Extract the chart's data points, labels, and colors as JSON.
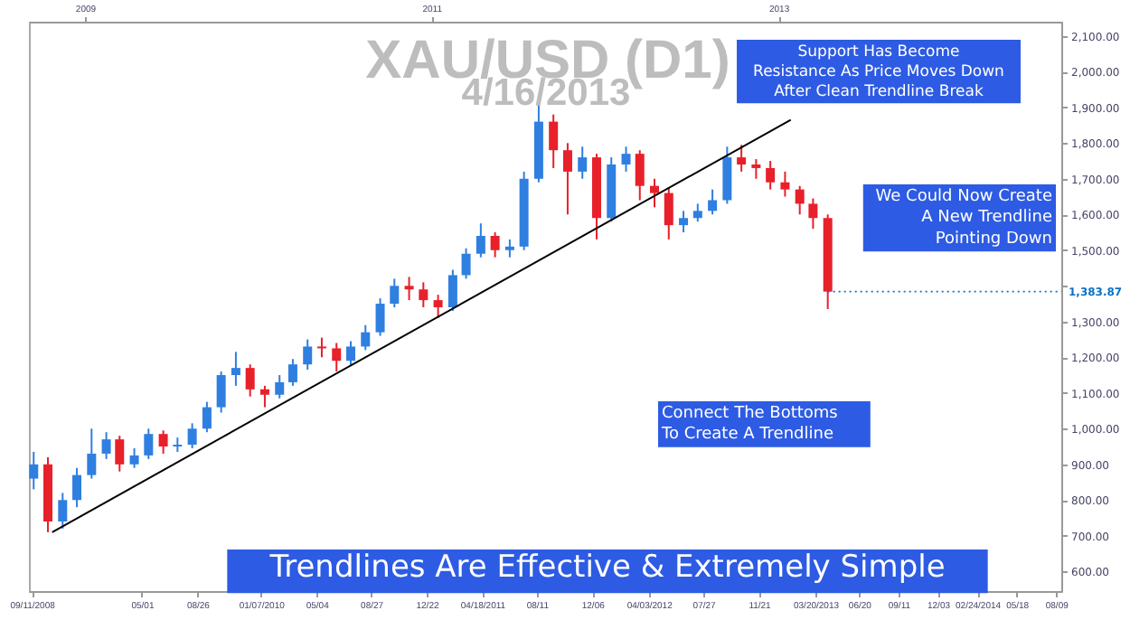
{
  "chart_data": {
    "type": "candlestick",
    "title": "XAU/USD (D1)",
    "subtitle": "4/16/2013",
    "x": [
      "2008-09-15",
      "2008-10-15",
      "2008-11-15",
      "2008-12-15",
      "2009-01-15",
      "2009-02-15",
      "2009-03-15",
      "2009-04-15",
      "2009-05-15",
      "2009-06-15",
      "2009-07-15",
      "2009-08-15",
      "2009-09-15",
      "2009-10-15",
      "2009-11-15",
      "2009-12-15",
      "2010-01-15",
      "2010-02-15",
      "2010-03-15",
      "2010-04-15",
      "2010-05-15",
      "2010-06-15",
      "2010-07-15",
      "2010-08-15",
      "2010-09-15",
      "2010-10-15",
      "2010-11-15",
      "2010-12-15",
      "2011-01-15",
      "2011-02-15",
      "2011-03-15",
      "2011-04-15",
      "2011-05-15",
      "2011-06-15",
      "2011-07-15",
      "2011-08-15",
      "2011-09-15",
      "2011-10-15",
      "2011-11-15",
      "2011-12-15",
      "2012-01-15",
      "2012-02-15",
      "2012-03-15",
      "2012-04-15",
      "2012-05-15",
      "2012-06-15",
      "2012-07-15",
      "2012-08-15",
      "2012-09-15",
      "2012-10-15",
      "2012-11-15",
      "2012-12-15",
      "2013-01-15",
      "2013-02-15",
      "2013-03-15",
      "2013-04-15"
    ],
    "ohlc": [
      [
        860,
        935,
        830,
        900
      ],
      [
        900,
        920,
        710,
        740
      ],
      [
        740,
        820,
        720,
        800
      ],
      [
        800,
        890,
        780,
        870
      ],
      [
        870,
        1000,
        860,
        930
      ],
      [
        930,
        990,
        915,
        970
      ],
      [
        970,
        980,
        880,
        900
      ],
      [
        900,
        945,
        890,
        925
      ],
      [
        925,
        1000,
        915,
        985
      ],
      [
        985,
        995,
        930,
        950
      ],
      [
        950,
        975,
        935,
        955
      ],
      [
        955,
        1015,
        945,
        1000
      ],
      [
        1000,
        1075,
        990,
        1060
      ],
      [
        1060,
        1160,
        1045,
        1150
      ],
      [
        1150,
        1215,
        1120,
        1170
      ],
      [
        1170,
        1180,
        1090,
        1110
      ],
      [
        1110,
        1120,
        1060,
        1095
      ],
      [
        1095,
        1150,
        1085,
        1130
      ],
      [
        1130,
        1195,
        1120,
        1180
      ],
      [
        1180,
        1250,
        1165,
        1230
      ],
      [
        1230,
        1255,
        1200,
        1225
      ],
      [
        1225,
        1240,
        1160,
        1190
      ],
      [
        1190,
        1245,
        1175,
        1230
      ],
      [
        1230,
        1290,
        1220,
        1270
      ],
      [
        1270,
        1365,
        1260,
        1350
      ],
      [
        1350,
        1420,
        1340,
        1400
      ],
      [
        1400,
        1425,
        1360,
        1390
      ],
      [
        1390,
        1410,
        1340,
        1360
      ],
      [
        1360,
        1375,
        1310,
        1340
      ],
      [
        1340,
        1445,
        1330,
        1430
      ],
      [
        1430,
        1505,
        1420,
        1490
      ],
      [
        1490,
        1575,
        1480,
        1540
      ],
      [
        1540,
        1550,
        1480,
        1500
      ],
      [
        1500,
        1530,
        1480,
        1510
      ],
      [
        1510,
        1720,
        1500,
        1700
      ],
      [
        1700,
        1920,
        1690,
        1860
      ],
      [
        1860,
        1880,
        1730,
        1780
      ],
      [
        1780,
        1800,
        1600,
        1720
      ],
      [
        1720,
        1790,
        1700,
        1760
      ],
      [
        1760,
        1770,
        1530,
        1590
      ],
      [
        1590,
        1760,
        1580,
        1740
      ],
      [
        1740,
        1790,
        1720,
        1770
      ],
      [
        1770,
        1780,
        1640,
        1680
      ],
      [
        1680,
        1700,
        1620,
        1660
      ],
      [
        1660,
        1675,
        1530,
        1570
      ],
      [
        1570,
        1610,
        1550,
        1590
      ],
      [
        1590,
        1630,
        1580,
        1610
      ],
      [
        1610,
        1670,
        1600,
        1640
      ],
      [
        1640,
        1790,
        1630,
        1760
      ],
      [
        1760,
        1795,
        1720,
        1740
      ],
      [
        1740,
        1755,
        1700,
        1730
      ],
      [
        1730,
        1750,
        1670,
        1690
      ],
      [
        1690,
        1720,
        1650,
        1670
      ],
      [
        1670,
        1680,
        1600,
        1630
      ],
      [
        1630,
        1645,
        1560,
        1590
      ],
      [
        1590,
        1600,
        1335,
        1383.87
      ]
    ],
    "colors": [
      "#2f7fe0",
      "#e8202a",
      "#2f7fe0",
      "#2f7fe0",
      "#2f7fe0",
      "#2f7fe0",
      "#e8202a",
      "#2f7fe0",
      "#2f7fe0",
      "#e8202a",
      "#2f7fe0",
      "#2f7fe0",
      "#2f7fe0",
      "#2f7fe0",
      "#2f7fe0",
      "#e8202a",
      "#e8202a",
      "#2f7fe0",
      "#2f7fe0",
      "#2f7fe0",
      "#e8202a",
      "#e8202a",
      "#2f7fe0",
      "#2f7fe0",
      "#2f7fe0",
      "#2f7fe0",
      "#e8202a",
      "#e8202a",
      "#e8202a",
      "#2f7fe0",
      "#2f7fe0",
      "#2f7fe0",
      "#e8202a",
      "#2f7fe0",
      "#2f7fe0",
      "#2f7fe0",
      "#e8202a",
      "#e8202a",
      "#2f7fe0",
      "#e8202a",
      "#2f7fe0",
      "#2f7fe0",
      "#e8202a",
      "#e8202a",
      "#e8202a",
      "#2f7fe0",
      "#2f7fe0",
      "#2f7fe0",
      "#2f7fe0",
      "#e8202a",
      "#e8202a",
      "#e8202a",
      "#e8202a",
      "#e8202a",
      "#e8202a",
      "#e8202a"
    ],
    "series": [
      {
        "type": "line",
        "color": "#000000",
        "x": [
          "2008-10-24",
          "2013-01-27"
        ],
        "values": [
          710,
          1865
        ]
      }
    ],
    "xlim": [
      "2008-09-05",
      "2014-08-20"
    ],
    "xticks": [
      {
        "value": "2008-09-11",
        "label": "09/11/2008"
      },
      {
        "value": "2009-05-01",
        "label": "05/01"
      },
      {
        "value": "2009-08-26",
        "label": "08/26"
      },
      {
        "value": "2010-01-07",
        "label": "01/07/2010"
      },
      {
        "value": "2010-05-04",
        "label": "05/04"
      },
      {
        "value": "2010-08-27",
        "label": "08/27"
      },
      {
        "value": "2010-12-22",
        "label": "12/22"
      },
      {
        "value": "2011-04-18",
        "label": "04/18/2011"
      },
      {
        "value": "2011-08-11",
        "label": "08/11"
      },
      {
        "value": "2011-12-06",
        "label": "12/06"
      },
      {
        "value": "2012-04-03",
        "label": "04/03/2012"
      },
      {
        "value": "2012-07-27",
        "label": "07/27"
      },
      {
        "value": "2012-11-21",
        "label": "11/21"
      },
      {
        "value": "2013-03-20",
        "label": "03/20/2013"
      },
      {
        "value": "2013-06-20",
        "label": "06/20"
      },
      {
        "value": "2013-09-11",
        "label": "09/11"
      },
      {
        "value": "2013-12-03",
        "label": "12/03"
      },
      {
        "value": "2014-02-24",
        "label": "02/24/2014"
      },
      {
        "value": "2014-05-18",
        "label": "05/18"
      },
      {
        "value": "2014-08-09",
        "label": "08/09"
      }
    ],
    "x2lim": [
      "2008-09-05",
      "2014-08-20"
    ],
    "x2ticks": [
      {
        "value": "2009-01-01",
        "label": "2009"
      },
      {
        "value": "2011-01-01",
        "label": "2011"
      },
      {
        "value": "2013-01-01",
        "label": "2013"
      }
    ],
    "ylim": [
      545,
      2140
    ],
    "yticks": [
      {
        "value": 600,
        "label": "600.00"
      },
      {
        "value": 700,
        "label": "700.00"
      },
      {
        "value": 800,
        "label": "800.00"
      },
      {
        "value": 900,
        "label": "900.00"
      },
      {
        "value": 1000,
        "label": "1,000.00"
      },
      {
        "value": 1100,
        "label": "1,100.00"
      },
      {
        "value": 1200,
        "label": "1,200.00"
      },
      {
        "value": 1300,
        "label": "1,300.00"
      },
      {
        "value": 1400,
        "label": null
      },
      {
        "value": 1500,
        "label": "1,500.00"
      },
      {
        "value": 1600,
        "label": "1,600.00"
      },
      {
        "value": 1700,
        "label": "1,700.00"
      },
      {
        "value": 1800,
        "label": "1,800.00"
      },
      {
        "value": 1900,
        "label": "1,900.00"
      },
      {
        "value": 2000,
        "label": "2,000.00"
      },
      {
        "value": 2100,
        "label": "2,100.00"
      }
    ],
    "annotations": [
      {
        "text": "1,383.87",
        "x": "2013-04-15",
        "y": 1383.87
      },
      "Support Has Become\nResistance As Price Moves Down\nAfter Clean Trendline Break",
      "We Could Now Create\nA New Trendline\nPointing Down",
      "Connect The Bottoms\nTo Create A Trendline",
      "Trendlines Are Effective & Extremely Simple"
    ]
  }
}
